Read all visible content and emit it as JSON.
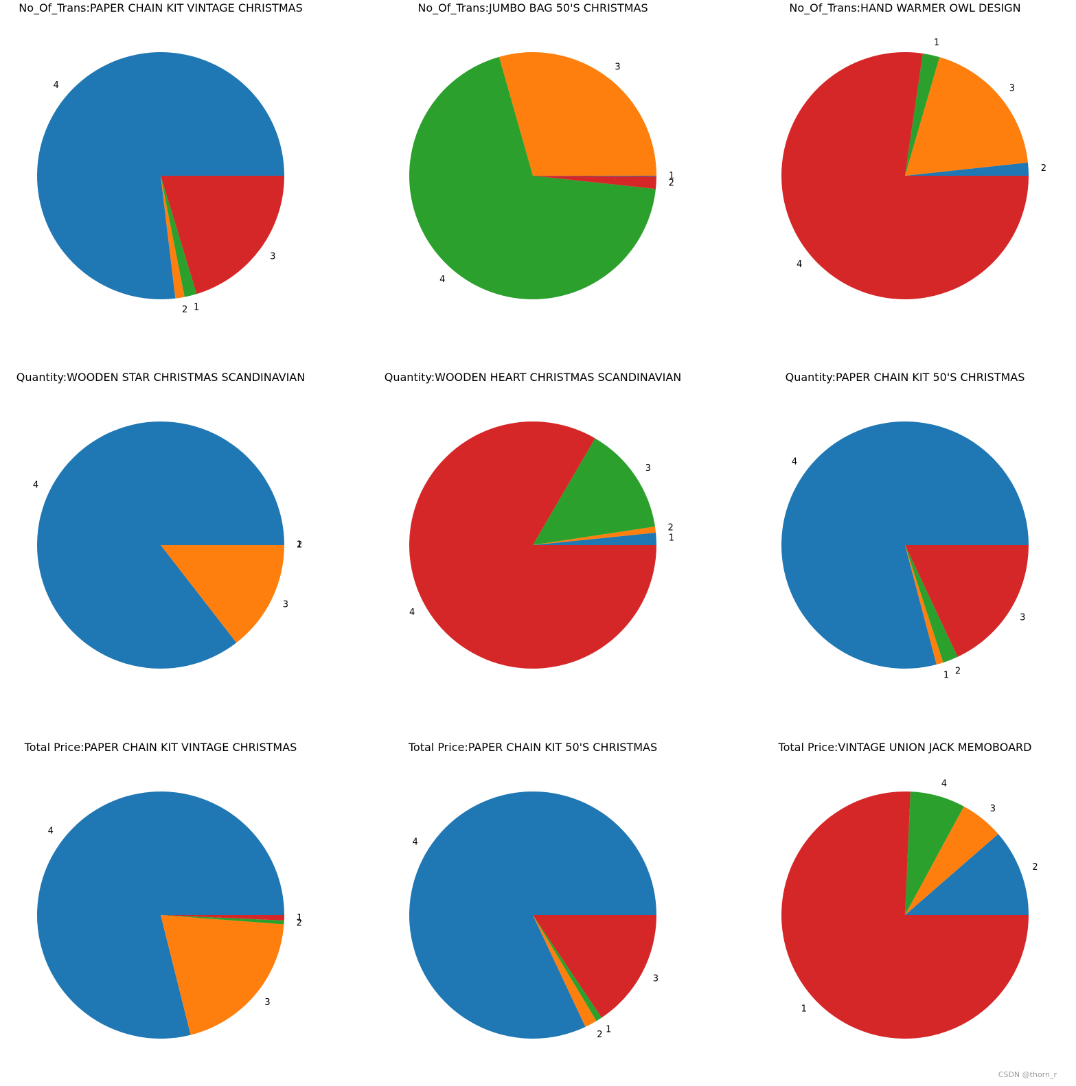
{
  "colors": {
    "blue": "#1f77b4",
    "orange": "#ff7f0e",
    "green": "#2ca02c",
    "red": "#d62728"
  },
  "watermark": "CSDN @thorn_r",
  "chart_data": [
    {
      "type": "pie",
      "title": "No_Of_Trans:PAPER CHAIN KIT VINTAGE CHRISTMAS",
      "slices": [
        {
          "label": "4",
          "value": 76.9,
          "color": "#1f77b4"
        },
        {
          "label": "2",
          "value": 1.2,
          "color": "#ff7f0e"
        },
        {
          "label": "1",
          "value": 1.6,
          "color": "#2ca02c"
        },
        {
          "label": "3",
          "value": 20.3,
          "color": "#d62728"
        }
      ]
    },
    {
      "type": "pie",
      "title": "No_Of_Trans:JUMBO BAG 50'S CHRISTMAS",
      "slices": [
        {
          "label": "3",
          "value": 29.4,
          "color": "#ff7f0e"
        },
        {
          "label": "4",
          "value": 68.9,
          "color": "#2ca02c"
        },
        {
          "label": "2",
          "value": 1.6,
          "color": "#d62728"
        },
        {
          "label": "1",
          "value": 0.1,
          "color": "#1f77b4"
        }
      ]
    },
    {
      "type": "pie",
      "title": "No_Of_Trans:HAND WARMER OWL DESIGN",
      "slices": [
        {
          "label": "2",
          "value": 1.7,
          "color": "#1f77b4"
        },
        {
          "label": "3",
          "value": 18.8,
          "color": "#ff7f0e"
        },
        {
          "label": "1",
          "value": 2.2,
          "color": "#2ca02c"
        },
        {
          "label": "4",
          "value": 77.3,
          "color": "#d62728"
        }
      ]
    },
    {
      "type": "pie",
      "title": "Quantity:WOODEN STAR CHRISTMAS SCANDINAVIAN",
      "slices": [
        {
          "label": "4",
          "value": 85.5,
          "color": "#1f77b4"
        },
        {
          "label": "3",
          "value": 14.5,
          "color": "#ff7f0e"
        },
        {
          "label": "1",
          "value": 0.0,
          "color": "#2ca02c"
        },
        {
          "label": "2",
          "value": 0.0,
          "color": "#d62728"
        }
      ]
    },
    {
      "type": "pie",
      "title": "Quantity:WOODEN HEART CHRISTMAS SCANDINAVIAN",
      "slices": [
        {
          "label": "1",
          "value": 1.6,
          "color": "#1f77b4"
        },
        {
          "label": "2",
          "value": 0.8,
          "color": "#ff7f0e"
        },
        {
          "label": "3",
          "value": 14.2,
          "color": "#2ca02c"
        },
        {
          "label": "4",
          "value": 83.4,
          "color": "#d62728"
        }
      ]
    },
    {
      "type": "pie",
      "title": "Quantity:PAPER CHAIN KIT 50'S CHRISTMAS",
      "slices": [
        {
          "label": "4",
          "value": 79.1,
          "color": "#1f77b4"
        },
        {
          "label": "1",
          "value": 0.9,
          "color": "#ff7f0e"
        },
        {
          "label": "2",
          "value": 2.0,
          "color": "#2ca02c"
        },
        {
          "label": "3",
          "value": 18.0,
          "color": "#d62728"
        }
      ]
    },
    {
      "type": "pie",
      "title": "Total Price:PAPER CHAIN KIT VINTAGE CHRISTMAS",
      "slices": [
        {
          "label": "4",
          "value": 78.9,
          "color": "#1f77b4"
        },
        {
          "label": "3",
          "value": 19.9,
          "color": "#ff7f0e"
        },
        {
          "label": "2",
          "value": 0.5,
          "color": "#2ca02c"
        },
        {
          "label": "1",
          "value": 0.7,
          "color": "#d62728"
        }
      ]
    },
    {
      "type": "pie",
      "title": "Total Price:PAPER CHAIN KIT 50'S CHRISTMAS",
      "slices": [
        {
          "label": "4",
          "value": 82.0,
          "color": "#1f77b4"
        },
        {
          "label": "2",
          "value": 1.6,
          "color": "#ff7f0e"
        },
        {
          "label": "1",
          "value": 0.8,
          "color": "#2ca02c"
        },
        {
          "label": "3",
          "value": 15.6,
          "color": "#d62728"
        }
      ]
    },
    {
      "type": "pie",
      "title": "Total Price:VINTAGE UNION JACK MEMOBOARD",
      "slices": [
        {
          "label": "2",
          "value": 11.4,
          "color": "#1f77b4"
        },
        {
          "label": "3",
          "value": 5.7,
          "color": "#ff7f0e"
        },
        {
          "label": "4",
          "value": 7.2,
          "color": "#2ca02c"
        },
        {
          "label": "1",
          "value": 75.7,
          "color": "#d62728"
        }
      ]
    }
  ]
}
